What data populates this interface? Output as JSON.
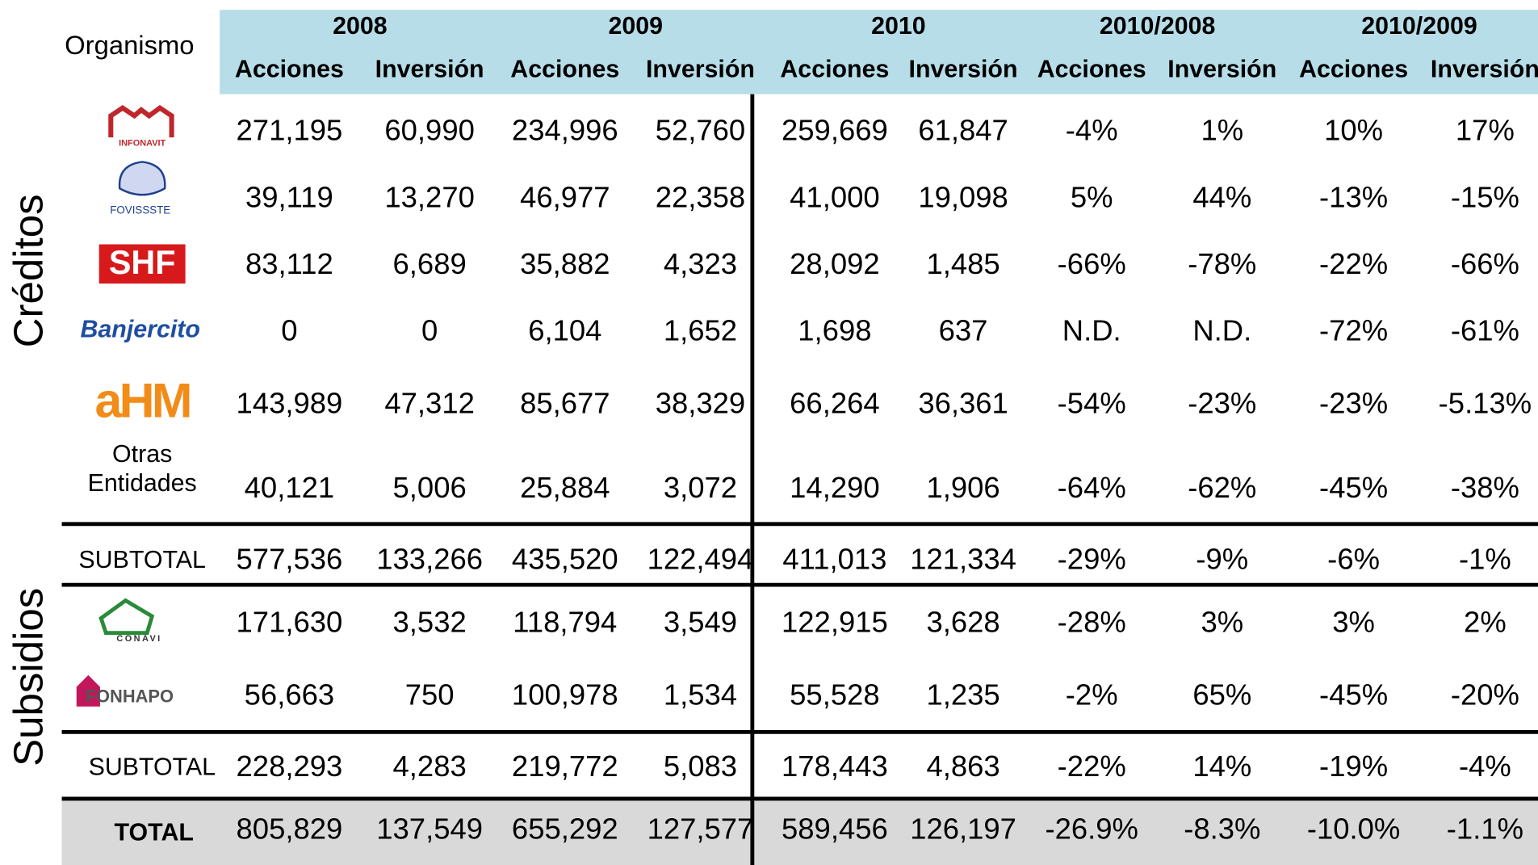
{
  "table": {
    "corner": "Organismo",
    "groups": [
      "2008",
      "2009",
      "2010",
      "2010/2008",
      "2010/2009"
    ],
    "subheaders": [
      "Acciones",
      "Inversión",
      "Acciones",
      "Inversión",
      "Acciones",
      "Inversión",
      "Acciones",
      "Inversión",
      "Acciones",
      "Inversión"
    ],
    "sections": [
      "Créditos",
      "Subsidios"
    ],
    "rows": [
      {
        "label": "INFONAVIT",
        "cells": [
          "271,195",
          "60,990",
          "234,996",
          "52,760",
          "259,669",
          "61,847",
          "-4%",
          "1%",
          "10%",
          "17%"
        ]
      },
      {
        "label": "FOVISSSTE",
        "cells": [
          "39,119",
          "13,270",
          "46,977",
          "22,358",
          "41,000",
          "19,098",
          "5%",
          "44%",
          "-13%",
          "-15%"
        ]
      },
      {
        "label": "SHF",
        "cells": [
          "83,112",
          "6,689",
          "35,882",
          "4,323",
          "28,092",
          "1,485",
          "-66%",
          "-78%",
          "-22%",
          "-66%"
        ]
      },
      {
        "label": "Banjercito",
        "cells": [
          "0",
          "0",
          "6,104",
          "1,652",
          "1,698",
          "637",
          "N.D.",
          "N.D.",
          "-72%",
          "-61%"
        ]
      },
      {
        "label": "aHM",
        "cells": [
          "143,989",
          "47,312",
          "85,677",
          "38,329",
          "66,264",
          "36,361",
          "-54%",
          "-23%",
          "-23%",
          "-5.13%"
        ]
      },
      {
        "label": [
          "Otras",
          "Entidades"
        ],
        "cells": [
          "40,121",
          "5,006",
          "25,884",
          "3,072",
          "14,290",
          "1,906",
          "-64%",
          "-62%",
          "-45%",
          "-38%"
        ]
      },
      {
        "label": "SUBTOTAL",
        "cells": [
          "577,536",
          "133,266",
          "435,520",
          "122,494",
          "411,013",
          "121,334",
          "-29%",
          "-9%",
          "-6%",
          "-1%"
        ]
      },
      {
        "label": "CONAVI",
        "cells": [
          "171,630",
          "3,532",
          "118,794",
          "3,549",
          "122,915",
          "3,628",
          "-28%",
          "3%",
          "3%",
          "2%"
        ]
      },
      {
        "label": "FONHAPO",
        "cells": [
          "56,663",
          "750",
          "100,978",
          "1,534",
          "55,528",
          "1,235",
          "-2%",
          "65%",
          "-45%",
          "-20%"
        ]
      },
      {
        "label": "SUBTOTAL",
        "cells": [
          "228,293",
          "4,283",
          "219,772",
          "5,083",
          "178,443",
          "4,863",
          "-22%",
          "14%",
          "-19%",
          "-4%"
        ]
      },
      {
        "label": "TOTAL",
        "cells": [
          "805,829",
          "137,549",
          "655,292",
          "127,577",
          "589,456",
          "126,197",
          "-26.9%",
          "-8.3%",
          "-10.0%",
          "-1.1%"
        ]
      }
    ]
  }
}
